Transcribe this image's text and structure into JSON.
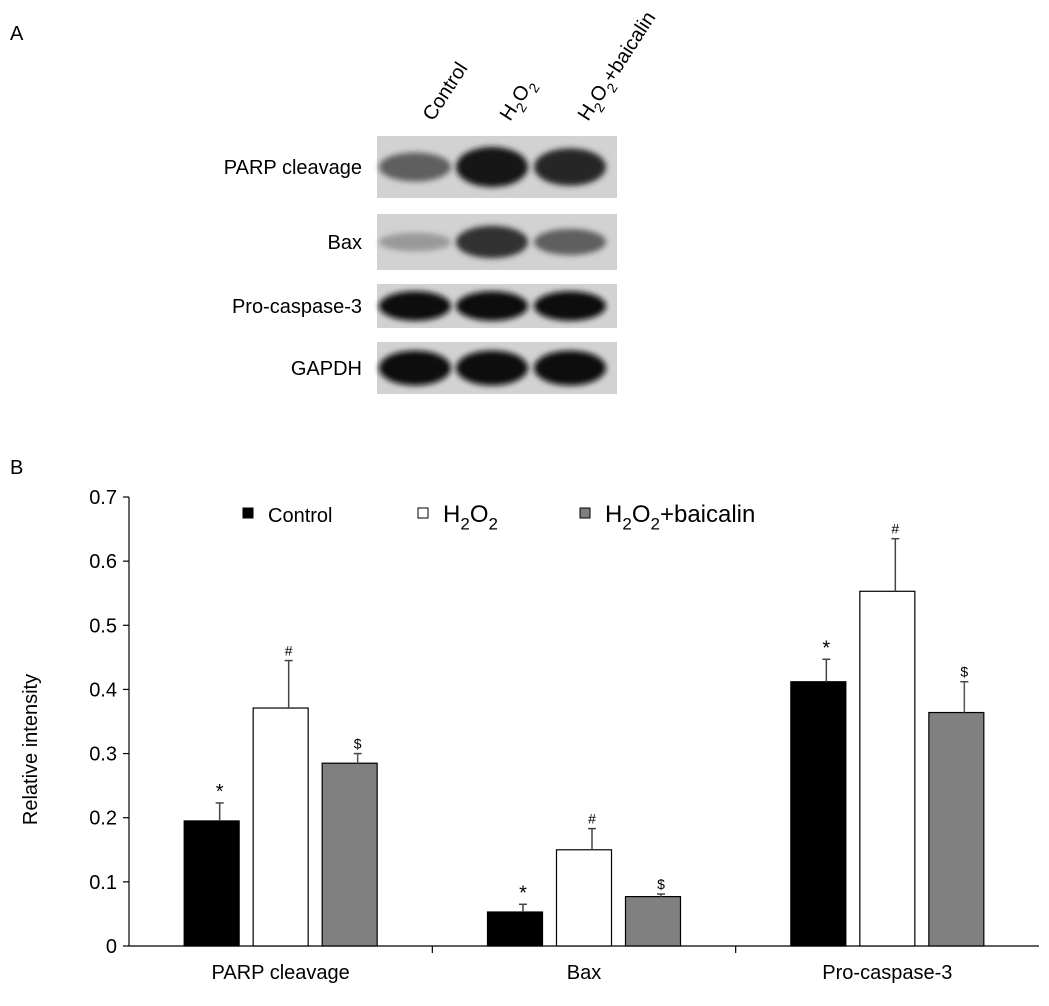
{
  "panel_a": {
    "label": "A",
    "lanes": [
      {
        "base": "Control",
        "sub": "",
        "rest": ""
      },
      {
        "base": "H",
        "sub": "2",
        "rest": "O",
        "sub2": "2",
        "tail": ""
      },
      {
        "base": "H",
        "sub": "2",
        "rest": "O",
        "sub2": "2",
        "tail": "+baicalin"
      }
    ],
    "blots": [
      {
        "label": "PARP cleavage",
        "intensity": [
          0.55,
          0.95,
          0.85
        ]
      },
      {
        "label": "Bax",
        "intensity": [
          0.25,
          0.8,
          0.55
        ]
      },
      {
        "label": "Pro-caspase-3",
        "intensity": [
          1.0,
          1.0,
          1.0
        ]
      },
      {
        "label": "GAPDH",
        "intensity": [
          1.0,
          1.0,
          1.0
        ]
      }
    ]
  },
  "chart_data": {
    "panel_label": "B",
    "type": "bar",
    "ylabel": "Relative intensity",
    "ylim": [
      0,
      0.7
    ],
    "yticks": [
      "0",
      "0.1",
      "0.2",
      "0.3",
      "0.4",
      "0.5",
      "0.6",
      "0.7"
    ],
    "categories": [
      "PARP cleavage",
      "Bax",
      "Pro-caspase-3"
    ],
    "legend_position": "top",
    "series": [
      {
        "name": "Control",
        "color": "#000000",
        "values": [
          0.195,
          0.053,
          0.412
        ],
        "errors": [
          0.028,
          0.012,
          0.035
        ],
        "markers": [
          "*",
          "*",
          "*"
        ]
      },
      {
        "name": "H2O2",
        "color": "#ffffff",
        "values": [
          0.371,
          0.15,
          0.553
        ],
        "errors": [
          0.074,
          0.033,
          0.082
        ],
        "markers": [
          "#",
          "#",
          "#"
        ]
      },
      {
        "name": "H2O2+baicalin",
        "color": "#808080",
        "values": [
          0.285,
          0.077,
          0.364
        ],
        "errors": [
          0.015,
          0.004,
          0.048
        ],
        "markers": [
          "$",
          "$",
          "$"
        ]
      }
    ],
    "legend": [
      {
        "base": "Control"
      },
      {
        "base": "H",
        "sub": "2",
        "rest": "O",
        "sub2": "2",
        "tail": ""
      },
      {
        "base": "H",
        "sub": "2",
        "rest": "O",
        "sub2": "2",
        "tail": "+baicalin"
      }
    ]
  }
}
